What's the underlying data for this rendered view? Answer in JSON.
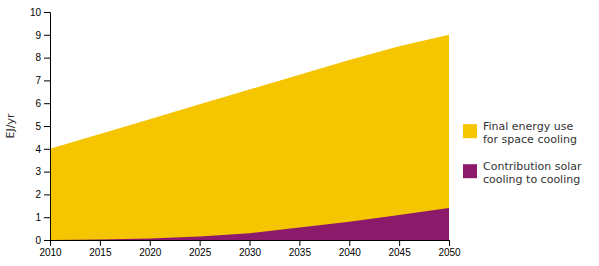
{
  "chart_data": {
    "type": "area",
    "stacked": false,
    "x": [
      2010,
      2015,
      2020,
      2025,
      2030,
      2035,
      2040,
      2045,
      2050
    ],
    "series": [
      {
        "name": "Final energy use\nfor space cooling",
        "color": "#F5C500",
        "values": [
          4.0,
          4.65,
          5.3,
          5.95,
          6.6,
          7.25,
          7.9,
          8.5,
          9.0
        ]
      },
      {
        "name": "Contribution solar\ncooling to cooling",
        "color": "#8B1A6B",
        "values": [
          0.0,
          0.02,
          0.07,
          0.15,
          0.3,
          0.55,
          0.8,
          1.1,
          1.4
        ]
      }
    ],
    "ylabel": "EJ/yr",
    "xlim": [
      2010,
      2050
    ],
    "ylim": [
      0,
      10
    ],
    "xticks": [
      2010,
      2015,
      2020,
      2025,
      2030,
      2035,
      2040,
      2045,
      2050
    ],
    "yticks": [
      0,
      1,
      2,
      3,
      4,
      5,
      6,
      7,
      8,
      9,
      10
    ],
    "grid": false,
    "legend": "right"
  }
}
